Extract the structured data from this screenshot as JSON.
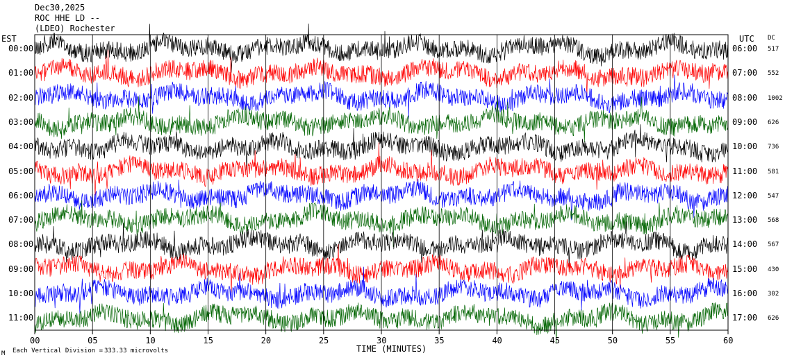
{
  "header": {
    "date": "Dec30,2025",
    "station": "ROC HHE LD --",
    "network": "(LDEO) Rochester"
  },
  "chart_data": {
    "type": "line",
    "title": "",
    "xlabel": "TIME (MINUTES)",
    "ylabel": "",
    "xlim": [
      0,
      60
    ],
    "x_ticks": [
      "00",
      "05",
      "10",
      "15",
      "20",
      "25",
      "30",
      "35",
      "40",
      "45",
      "50",
      "55",
      "60"
    ],
    "left_axis_label": "EST",
    "right_axis_label": "UTC",
    "dc_label": "DC",
    "rows": [
      {
        "est": "00:00",
        "utc": "06:00",
        "dc": "517",
        "color": "#000000"
      },
      {
        "est": "01:00",
        "utc": "07:00",
        "dc": "552",
        "color": "#ff0000"
      },
      {
        "est": "02:00",
        "utc": "08:00",
        "dc": "1002",
        "color": "#0000ff"
      },
      {
        "est": "03:00",
        "utc": "09:00",
        "dc": "626",
        "color": "#006400"
      },
      {
        "est": "04:00",
        "utc": "10:00",
        "dc": "736",
        "color": "#000000"
      },
      {
        "est": "05:00",
        "utc": "11:00",
        "dc": "581",
        "color": "#ff0000"
      },
      {
        "est": "06:00",
        "utc": "12:00",
        "dc": "547",
        "color": "#0000ff"
      },
      {
        "est": "07:00",
        "utc": "13:00",
        "dc": "568",
        "color": "#006400"
      },
      {
        "est": "08:00",
        "utc": "14:00",
        "dc": "567",
        "color": "#000000"
      },
      {
        "est": "09:00",
        "utc": "15:00",
        "dc": "430",
        "color": "#ff0000"
      },
      {
        "est": "10:00",
        "utc": "16:00",
        "dc": "302",
        "color": "#0000ff"
      },
      {
        "est": "11:00",
        "utc": "17:00",
        "dc": "626",
        "color": "#006400"
      }
    ],
    "scale_note": "Each Vertical Division =",
    "scale_value": "333.33 microvolts",
    "footnote_mark": "M"
  }
}
